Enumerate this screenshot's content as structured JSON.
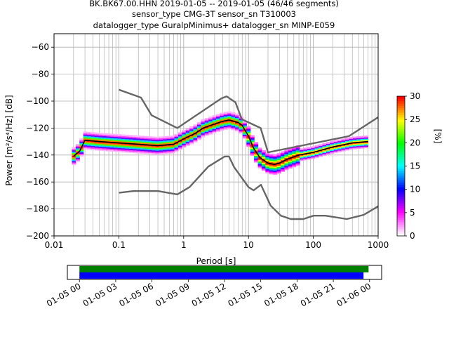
{
  "title": {
    "line1": "BK.BK67.00.HHN   2019-01-05 -- 2019-01-05  (46/46 segments)",
    "line2": "sensor_type CMG-3T sensor_sn T310003",
    "line3": "datalogger_type GuralpMinimus+ datalogger_sn MINP-E059"
  },
  "chart_data": [
    {
      "type": "heatmap",
      "title": "BK.BK67.00.HHN   2019-01-05 -- 2019-01-05  (46/46 segments)",
      "xlabel": "Period [s]",
      "ylabel": "Power [m²/s⁴/Hz] [dB]",
      "x_scale": "log",
      "xlim": [
        0.01,
        1000
      ],
      "ylim": [
        -200,
        -50
      ],
      "x_ticks": [
        0.01,
        0.1,
        1,
        10,
        100,
        1000
      ],
      "x_tick_labels": [
        "0.01",
        "0.1",
        "1",
        "10",
        "100",
        "1000"
      ],
      "y_ticks": [
        -200,
        -180,
        -160,
        -140,
        -120,
        -100,
        -80,
        -60
      ],
      "y_tick_labels": [
        "-200",
        "-180",
        "-160",
        "-140",
        "-120",
        "-100",
        "-80",
        "-60"
      ],
      "grid": true,
      "colorbar": {
        "label": "[%]",
        "min": 0,
        "max": 30,
        "ticks": [
          0,
          5,
          10,
          15,
          20,
          25,
          30
        ],
        "colors": [
          "#ffffff",
          "#ff00ff",
          "#0000ff",
          "#00ffff",
          "#00ff00",
          "#ffff00",
          "#ff0000"
        ]
      },
      "series": [
        {
          "role": "new-high-noise-model",
          "color": "#666666",
          "x": [
            0.1,
            0.22,
            0.32,
            0.8,
            3.8,
            4.6,
            6.3,
            7.9,
            15.4,
            20,
            354.8,
            1000
          ],
          "y": [
            -91.5,
            -97.4,
            -110.5,
            -120,
            -98,
            -96.5,
            -101,
            -113.5,
            -120,
            -138,
            -126,
            -112
          ]
        },
        {
          "role": "new-low-noise-model",
          "color": "#666666",
          "x": [
            0.1,
            0.17,
            0.4,
            0.8,
            1.24,
            2.4,
            4.3,
            5,
            6,
            10,
            12,
            15.6,
            21.9,
            31.6,
            45,
            70,
            101,
            154,
            328,
            600,
            1000
          ],
          "y": [
            -168,
            -166.7,
            -166.7,
            -169.2,
            -163.7,
            -148.6,
            -141.1,
            -141.1,
            -149,
            -163.8,
            -166.2,
            -162.1,
            -177.5,
            -185,
            -187.5,
            -187.5,
            -185,
            -185,
            -187.5,
            -184.4,
            -178
          ]
        },
        {
          "role": "mode-line",
          "color": "#000000",
          "x": [
            0.02,
            0.025,
            0.03,
            0.05,
            0.1,
            0.2,
            0.4,
            0.7,
            1,
            1.5,
            2,
            3,
            4,
            5,
            6,
            7,
            8,
            10,
            12,
            15,
            20,
            25,
            30,
            40,
            60,
            100,
            200,
            400,
            700
          ],
          "y": [
            -141,
            -137,
            -129,
            -130,
            -131,
            -132,
            -133,
            -132,
            -128,
            -124,
            -120,
            -117,
            -115,
            -114,
            -115,
            -116,
            -118,
            -126,
            -135,
            -142,
            -146,
            -147,
            -146,
            -143,
            -140,
            -138,
            -134,
            -131,
            -130
          ]
        }
      ]
    },
    {
      "type": "timeline",
      "x_tick_labels": [
        "01-05 00",
        "01-05 03",
        "01-05 06",
        "01-05 09",
        "01-05 12",
        "01-05 15",
        "01-05 18",
        "01-05 21",
        "01-06 00"
      ],
      "xlim": [
        "2019-01-04 23:00",
        "2019-01-06 01:00"
      ],
      "bars": [
        {
          "role": "data-available",
          "color": "#008000",
          "start": "2019-01-05 00:00",
          "end": "2019-01-05 23:55"
        },
        {
          "role": "psd-segments-used",
          "color": "#0000ff",
          "start": "2019-01-05 00:00",
          "end": "2019-01-05 23:30"
        }
      ]
    }
  ]
}
